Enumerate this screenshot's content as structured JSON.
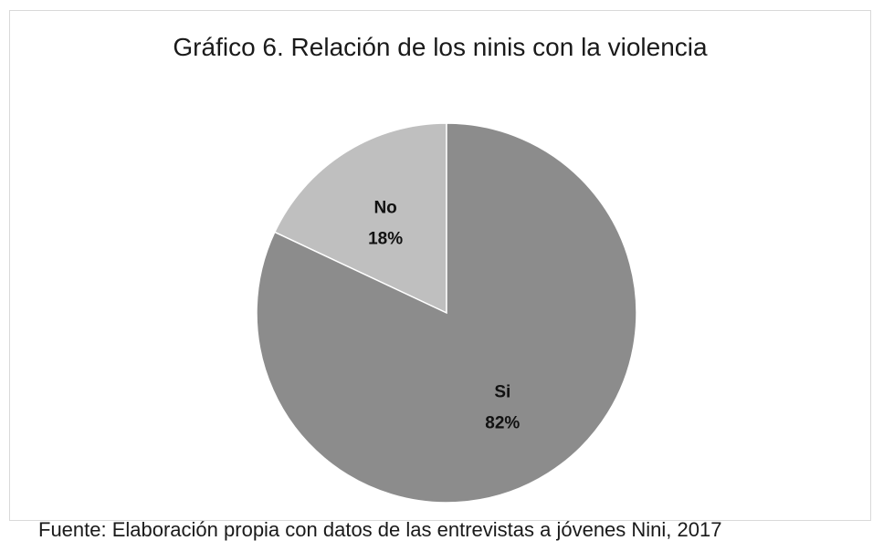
{
  "chart_data": {
    "type": "pie",
    "title": "Gráfico 6. Relación de los ninis con la violencia",
    "slices": [
      {
        "label": "No",
        "value": 18,
        "value_label": "18%",
        "color": "#bfbfbf"
      },
      {
        "label": "Si",
        "value": 82,
        "value_label": "82%",
        "color": "#8c8c8c"
      }
    ],
    "start": "12 o'clock",
    "direction": "counterclockwise for No, clockwise for Si",
    "legend": "none"
  },
  "source_note": "Fuente: Elaboración propia con datos de las entrevistas a jóvenes Nini, 2017"
}
